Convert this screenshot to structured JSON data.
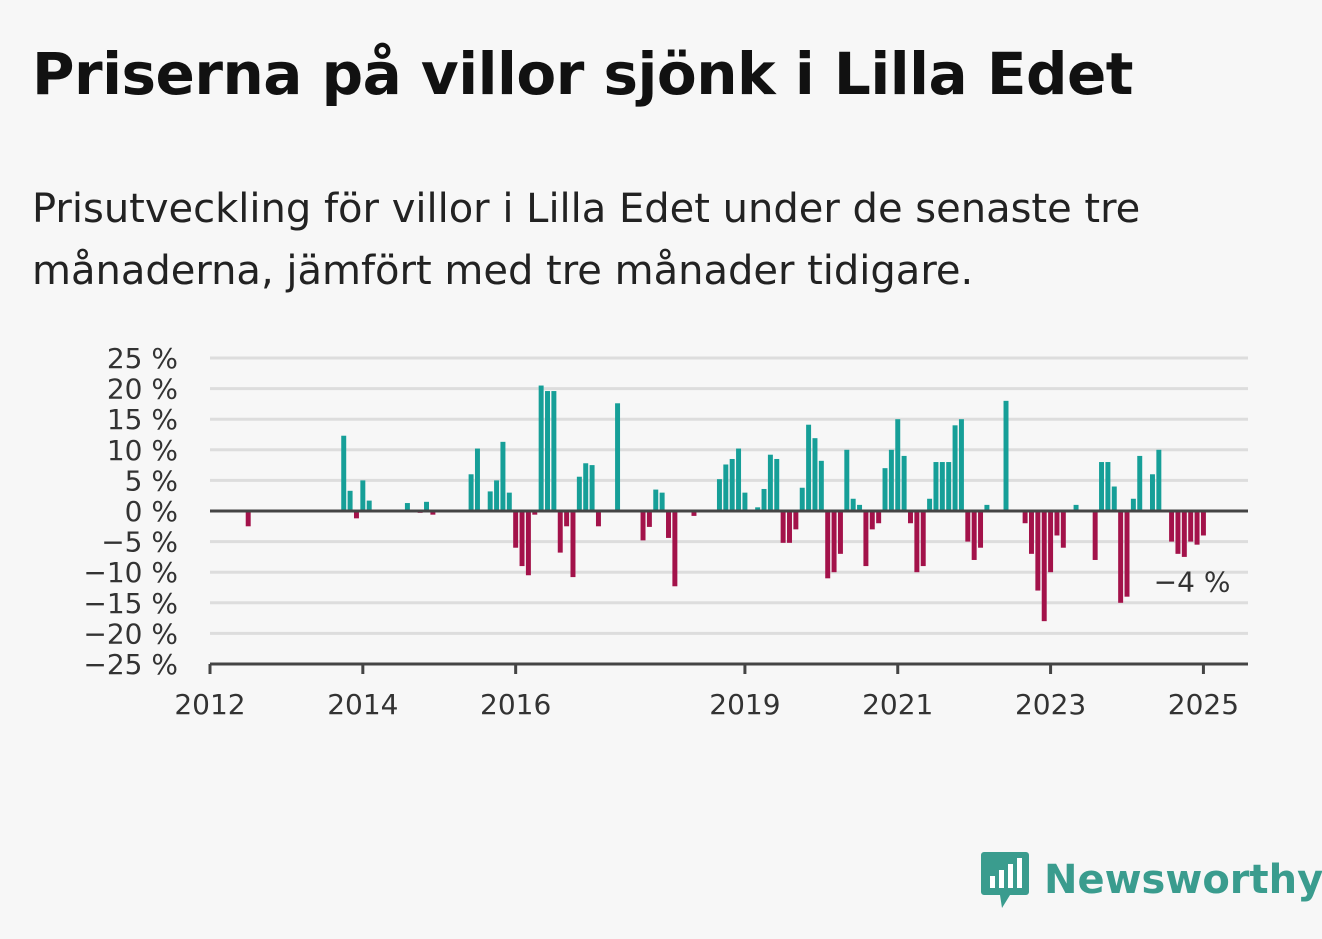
{
  "title": "Priserna på villor sjönk i Lilla Edet",
  "subtitle": "Prisutveckling för villor i Lilla Edet under de senaste tre månaderna, jämfört med tre månader tidigare.",
  "brand": {
    "name": "Newsworthy",
    "color": "#3a9c8e"
  },
  "colors": {
    "positive": "#169f98",
    "negative": "#a3124a",
    "grid": "#dddddd",
    "axis": "#444444"
  },
  "chart_data": {
    "type": "bar",
    "ylim": [
      -25,
      25
    ],
    "y_ticks": [
      {
        "value": 25,
        "label": "25 %"
      },
      {
        "value": 20,
        "label": "20 %"
      },
      {
        "value": 15,
        "label": "15 %"
      },
      {
        "value": 10,
        "label": "10 %"
      },
      {
        "value": 5,
        "label": "5 %"
      },
      {
        "value": 0,
        "label": "0 %"
      },
      {
        "value": -5,
        "label": "−5 %"
      },
      {
        "value": -10,
        "label": "−10 %"
      },
      {
        "value": -15,
        "label": "−15 %"
      },
      {
        "value": -20,
        "label": "−20 %"
      },
      {
        "value": -25,
        "label": "−25 %"
      }
    ],
    "x_ticks": [
      {
        "value": "2012-01",
        "label": "2012"
      },
      {
        "value": "2014-01",
        "label": "2014"
      },
      {
        "value": "2016-01",
        "label": "2016"
      },
      {
        "value": "2019-01",
        "label": "2019"
      },
      {
        "value": "2021-01",
        "label": "2021"
      },
      {
        "value": "2023-01",
        "label": "2023"
      },
      {
        "value": "2025-01",
        "label": "2025"
      }
    ],
    "x_domain": [
      "2012-01",
      "2025-08"
    ],
    "annotation": {
      "x": "2024-12",
      "text": "−4 %"
    },
    "data": [
      {
        "x": "2012-07",
        "y": -2.5
      },
      {
        "x": "2013-10",
        "y": 12.3
      },
      {
        "x": "2013-11",
        "y": 3.3
      },
      {
        "x": "2013-12",
        "y": -1.2
      },
      {
        "x": "2014-01",
        "y": 5.0
      },
      {
        "x": "2014-02",
        "y": 1.7
      },
      {
        "x": "2014-08",
        "y": 1.3
      },
      {
        "x": "2014-10",
        "y": -0.3
      },
      {
        "x": "2014-11",
        "y": 1.5
      },
      {
        "x": "2014-12",
        "y": -0.6
      },
      {
        "x": "2015-06",
        "y": 6.0
      },
      {
        "x": "2015-07",
        "y": 10.2
      },
      {
        "x": "2015-09",
        "y": 3.2
      },
      {
        "x": "2015-10",
        "y": 5.0
      },
      {
        "x": "2015-11",
        "y": 11.3
      },
      {
        "x": "2015-12",
        "y": 3.0
      },
      {
        "x": "2016-01",
        "y": -6.0
      },
      {
        "x": "2016-02",
        "y": -9.0
      },
      {
        "x": "2016-03",
        "y": -10.5
      },
      {
        "x": "2016-04",
        "y": -0.6
      },
      {
        "x": "2016-05",
        "y": 20.5
      },
      {
        "x": "2016-06",
        "y": 19.6
      },
      {
        "x": "2016-07",
        "y": 19.6
      },
      {
        "x": "2016-08",
        "y": -6.8
      },
      {
        "x": "2016-09",
        "y": -2.5
      },
      {
        "x": "2016-10",
        "y": -10.8
      },
      {
        "x": "2016-11",
        "y": 5.6
      },
      {
        "x": "2016-12",
        "y": 7.8
      },
      {
        "x": "2017-01",
        "y": 7.5
      },
      {
        "x": "2017-02",
        "y": -2.5
      },
      {
        "x": "2017-05",
        "y": 17.6
      },
      {
        "x": "2017-09",
        "y": -4.8
      },
      {
        "x": "2017-10",
        "y": -2.6
      },
      {
        "x": "2017-11",
        "y": 3.5
      },
      {
        "x": "2017-12",
        "y": 3.0
      },
      {
        "x": "2018-01",
        "y": -4.4
      },
      {
        "x": "2018-02",
        "y": -12.3
      },
      {
        "x": "2018-05",
        "y": -0.8
      },
      {
        "x": "2018-09",
        "y": 5.2
      },
      {
        "x": "2018-10",
        "y": 7.6
      },
      {
        "x": "2018-11",
        "y": 8.5
      },
      {
        "x": "2018-12",
        "y": 10.2
      },
      {
        "x": "2019-01",
        "y": 3.0
      },
      {
        "x": "2019-03",
        "y": 0.6
      },
      {
        "x": "2019-04",
        "y": 3.6
      },
      {
        "x": "2019-05",
        "y": 9.2
      },
      {
        "x": "2019-06",
        "y": 8.5
      },
      {
        "x": "2019-07",
        "y": -5.2
      },
      {
        "x": "2019-08",
        "y": -5.2
      },
      {
        "x": "2019-09",
        "y": -3.0
      },
      {
        "x": "2019-10",
        "y": 3.8
      },
      {
        "x": "2019-11",
        "y": 14.1
      },
      {
        "x": "2019-12",
        "y": 11.9
      },
      {
        "x": "2020-01",
        "y": 8.2
      },
      {
        "x": "2020-02",
        "y": -11.0
      },
      {
        "x": "2020-03",
        "y": -10.0
      },
      {
        "x": "2020-04",
        "y": -7.0
      },
      {
        "x": "2020-05",
        "y": 10.0
      },
      {
        "x": "2020-06",
        "y": 2.0
      },
      {
        "x": "2020-07",
        "y": 1.0
      },
      {
        "x": "2020-08",
        "y": -9.0
      },
      {
        "x": "2020-09",
        "y": -3.0
      },
      {
        "x": "2020-10",
        "y": -2.0
      },
      {
        "x": "2020-11",
        "y": 7.0
      },
      {
        "x": "2020-12",
        "y": 10.0
      },
      {
        "x": "2021-01",
        "y": 15.0
      },
      {
        "x": "2021-02",
        "y": 9.0
      },
      {
        "x": "2021-03",
        "y": -2.0
      },
      {
        "x": "2021-04",
        "y": -10.0
      },
      {
        "x": "2021-05",
        "y": -9.0
      },
      {
        "x": "2021-06",
        "y": 2.0
      },
      {
        "x": "2021-07",
        "y": 8.0
      },
      {
        "x": "2021-08",
        "y": 8.0
      },
      {
        "x": "2021-09",
        "y": 8.0
      },
      {
        "x": "2021-10",
        "y": 14.0
      },
      {
        "x": "2021-11",
        "y": 15.0
      },
      {
        "x": "2021-12",
        "y": -5.0
      },
      {
        "x": "2022-01",
        "y": -8.0
      },
      {
        "x": "2022-02",
        "y": -6.0
      },
      {
        "x": "2022-03",
        "y": 1.0
      },
      {
        "x": "2022-06",
        "y": 18.0
      },
      {
        "x": "2022-09",
        "y": -2.0
      },
      {
        "x": "2022-10",
        "y": -7.0
      },
      {
        "x": "2022-11",
        "y": -13.0
      },
      {
        "x": "2022-12",
        "y": -18.0
      },
      {
        "x": "2023-01",
        "y": -10.0
      },
      {
        "x": "2023-02",
        "y": -4.0
      },
      {
        "x": "2023-03",
        "y": -6.0
      },
      {
        "x": "2023-05",
        "y": 1.0
      },
      {
        "x": "2023-08",
        "y": -8.0
      },
      {
        "x": "2023-09",
        "y": 8.0
      },
      {
        "x": "2023-10",
        "y": 8.0
      },
      {
        "x": "2023-11",
        "y": 4.0
      },
      {
        "x": "2023-12",
        "y": -15.0
      },
      {
        "x": "2024-01",
        "y": -14.0
      },
      {
        "x": "2024-02",
        "y": 2.0
      },
      {
        "x": "2024-03",
        "y": 9.0
      },
      {
        "x": "2024-05",
        "y": 6.0
      },
      {
        "x": "2024-06",
        "y": 10.0
      },
      {
        "x": "2024-08",
        "y": -5.0
      },
      {
        "x": "2024-09",
        "y": -7.0
      },
      {
        "x": "2024-10",
        "y": -7.5
      },
      {
        "x": "2024-11",
        "y": -5.0
      },
      {
        "x": "2024-12",
        "y": -5.5
      },
      {
        "x": "2025-01",
        "y": -4.0
      }
    ]
  }
}
